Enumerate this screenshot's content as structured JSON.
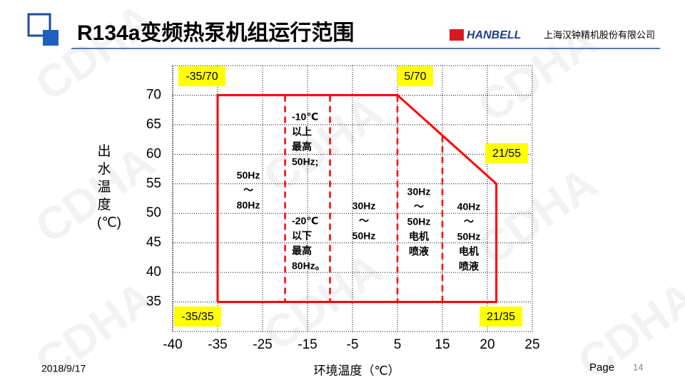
{
  "header": {
    "title": "R134a变频热泵机组运行范围",
    "logo": "HANBELL",
    "company": "上海汉钟精机股份有限公司"
  },
  "footer": {
    "date": "2018/9/17",
    "page_label": "Page",
    "page_number": "14"
  },
  "watermark": "CDHA",
  "chart_data": {
    "type": "line",
    "xlabel": "环境温度（℃）",
    "ylabel": "出水温度(℃)",
    "xticks": [
      -40,
      -35,
      -25,
      -15,
      -5,
      5,
      15,
      20,
      25
    ],
    "ylim": [
      30,
      75
    ],
    "yticks": [
      35,
      40,
      45,
      50,
      55,
      60,
      65,
      70
    ],
    "grid": true,
    "series": [
      {
        "name": "运行范围",
        "color": "#ff0000",
        "x": [
          -35,
          -35,
          5,
          21,
          21,
          -35
        ],
        "values": [
          35,
          70,
          70,
          55,
          35,
          35
        ]
      }
    ],
    "dividers": {
      "color": "#ff0000",
      "x": [
        -20,
        -10,
        5,
        15
      ]
    },
    "point_labels": [
      "-35/70",
      "5/70",
      "21/55",
      "-35/35",
      "21/35"
    ],
    "region_labels": [
      [
        "50Hz",
        "～",
        "80Hz"
      ],
      [
        "-10℃",
        "以上",
        "最高",
        "50Hz;"
      ],
      [
        "-20℃",
        "以下",
        "最高",
        "80Hz。"
      ],
      [
        "30Hz",
        "～",
        "50Hz"
      ],
      [
        "30Hz",
        "～",
        "50Hz",
        "电机",
        "喷液"
      ],
      [
        "40Hz",
        "～",
        "50Hz",
        "电机",
        "喷液"
      ]
    ]
  }
}
